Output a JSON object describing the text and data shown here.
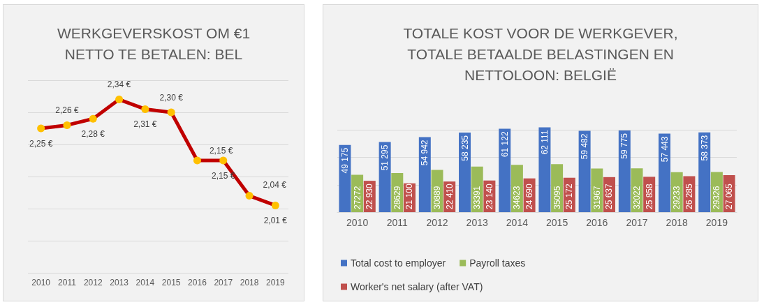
{
  "chart_data": [
    {
      "type": "line",
      "title": "WERKGEVERSKOST OM €1\nNETTO TE BETALEN: BEL",
      "categories": [
        "2010",
        "2011",
        "2012",
        "2013",
        "2014",
        "2015",
        "2016",
        "2017",
        "2018",
        "2019"
      ],
      "series": [
        {
          "color": "#c00000",
          "colors": [
            "#ffc000",
            "#ffc000",
            "#ffc000",
            "#ffc000",
            "#ffc000",
            "#ffc000",
            "#ffc000",
            "#ffc000",
            "#ffc000",
            "#ffc000"
          ],
          "values": [
            2.25,
            2.26,
            2.28,
            2.34,
            2.31,
            2.3,
            2.15,
            2.15,
            2.04,
            2.01
          ],
          "value_labels": [
            "2,25 €",
            "2,26 €",
            "2,28 €",
            "2,34 €",
            "2,31 €",
            "2,30 €",
            "2,15 €",
            "2,15 €",
            "2,04 €",
            "2,01 €"
          ]
        }
      ],
      "ylim": [
        1.8,
        2.4
      ],
      "yticks": [
        {
          "value": 1.8,
          "label": null
        },
        {
          "value": 1.9,
          "label": null
        },
        {
          "value": 2.0,
          "label": null
        },
        {
          "value": 2.1,
          "label": null
        },
        {
          "value": 2.2,
          "label": null
        },
        {
          "value": 2.3,
          "label": null
        },
        {
          "value": 2.4,
          "label": null
        }
      ],
      "tick_labels": "x",
      "grid": "y",
      "marker": "circle",
      "line_style": "solid",
      "legend": false
    },
    {
      "type": "bar",
      "title": "TOTALE KOST VOOR DE WERKGEVER,\nTOTALE BETAALDE BELASTINGEN EN\nNETTOLOON: BELGIË",
      "categories": [
        "2010",
        "2011",
        "2012",
        "2013",
        "2014",
        "2015",
        "2016",
        "2017",
        "2018",
        "2019"
      ],
      "series": [
        {
          "name": "Total cost to employer",
          "color": "#4472c4",
          "values": [
            49175,
            51295,
            54942,
            58235,
            61122,
            62111,
            59482,
            59775,
            57443,
            58373
          ],
          "value_labels": [
            "49 175",
            "51 295",
            "54 942",
            "58 235",
            "61 122",
            "62 111",
            "59 482",
            "59 775",
            "57 443",
            "58 373"
          ]
        },
        {
          "name": "Payroll taxes",
          "color": "#9bbb59",
          "values": [
            27272,
            28629,
            30889,
            33391,
            34623,
            35095,
            31967,
            32022,
            29233,
            29326
          ],
          "value_labels": [
            "27272",
            "28629",
            "30889",
            "33391",
            "34623",
            "35095",
            "31967",
            "32022",
            "29233",
            "29326"
          ]
        },
        {
          "name": "Worker's net salary (after VAT)",
          "color": "#c0504d",
          "values": [
            22930,
            21100,
            22410,
            23140,
            24690,
            25172,
            25637,
            25858,
            26285,
            27065
          ],
          "value_labels": [
            "22 930",
            "21 100",
            "22 410",
            "23 140",
            "24 690",
            "25 172",
            "25 637",
            "25 858",
            "26 285",
            "27 065"
          ]
        }
      ],
      "yticks": [
        {
          "value": 0,
          "label": null
        },
        {
          "value": 20000,
          "label": null
        },
        {
          "value": 40000,
          "label": null
        },
        {
          "value": 60000,
          "label": null
        }
      ],
      "tick_labels": "x",
      "grid": "y",
      "legend": "bottom"
    }
  ]
}
